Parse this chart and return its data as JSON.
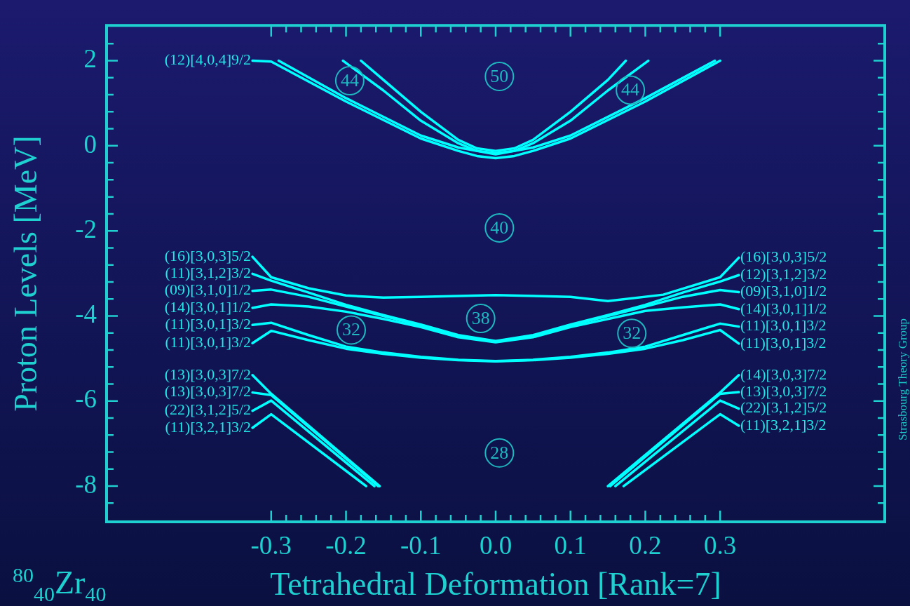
{
  "chart_data": {
    "type": "line",
    "xlabel": "Tetrahedral Deformation [Rank=7]",
    "ylabel": "Proton Levels [MeV]",
    "xlim": [
      -0.52,
      0.52
    ],
    "ylim": [
      -8.84,
      2.83
    ],
    "xticks": [
      -0.3,
      {
        "value": -0.28,
        "label": null
      },
      {
        "value": -0.26,
        "label": null
      },
      {
        "value": -0.24,
        "label": null
      },
      {
        "value": -0.22,
        "label": null
      },
      -0.2,
      {
        "value": -0.18,
        "label": null
      },
      {
        "value": -0.16,
        "label": null
      },
      {
        "value": -0.14,
        "label": null
      },
      {
        "value": -0.12,
        "label": null
      },
      -0.1,
      {
        "value": -0.08,
        "label": null
      },
      {
        "value": -0.06,
        "label": null
      },
      {
        "value": -0.04,
        "label": null
      },
      {
        "value": -0.02,
        "label": null
      },
      {
        "value": 0,
        "label": "0.0"
      },
      {
        "value": 0.02,
        "label": null
      },
      {
        "value": 0.04,
        "label": null
      },
      {
        "value": 0.06,
        "label": null
      },
      {
        "value": 0.08,
        "label": null
      },
      0.1,
      {
        "value": 0.12,
        "label": null
      },
      {
        "value": 0.14,
        "label": null
      },
      {
        "value": 0.16,
        "label": null
      },
      {
        "value": 0.18,
        "label": null
      },
      0.2,
      {
        "value": 0.22,
        "label": null
      },
      {
        "value": 0.24,
        "label": null
      },
      {
        "value": 0.26,
        "label": null
      },
      {
        "value": 0.28,
        "label": null
      },
      0.3
    ],
    "yticks": [
      {
        "value": -8.4,
        "label": null
      },
      -8,
      {
        "value": -7.6,
        "label": null
      },
      {
        "value": -7.2,
        "label": null
      },
      {
        "value": -6.8,
        "label": null
      },
      {
        "value": -6.4,
        "label": null
      },
      -6,
      {
        "value": -5.6,
        "label": null
      },
      {
        "value": -5.2,
        "label": null
      },
      {
        "value": -4.8,
        "label": null
      },
      {
        "value": -4.4,
        "label": null
      },
      -4,
      {
        "value": -3.6,
        "label": null
      },
      {
        "value": -3.2,
        "label": null
      },
      {
        "value": -2.8,
        "label": null
      },
      {
        "value": -2.4,
        "label": null
      },
      -2,
      {
        "value": -1.6,
        "label": null
      },
      {
        "value": -1.2,
        "label": null
      },
      {
        "value": -0.8,
        "label": null
      },
      {
        "value": -0.4,
        "label": null
      },
      0,
      {
        "value": 0.4,
        "label": null
      },
      {
        "value": 0.8,
        "label": null
      },
      {
        "value": 1.2,
        "label": null
      },
      {
        "value": 1.6,
        "label": null
      },
      2,
      {
        "value": 2.4,
        "label": null
      }
    ],
    "line_style": "solid",
    "marker": "none",
    "legend": false,
    "series": [
      {
        "color": "#00ffff",
        "x": [
          -0.325,
          -0.3,
          -0.2,
          -0.1,
          -0.05,
          -0.025,
          0,
          0.025,
          0.05,
          0.1,
          0.2,
          0.3
        ],
        "values": [
          2,
          1.98,
          1.04,
          0.17,
          -0.12,
          -0.24,
          -0.29,
          -0.24,
          -0.12,
          0.17,
          1.04,
          2.0
        ]
      },
      {
        "color": "#00ffff",
        "x": [
          -0.29,
          -0.2,
          -0.1,
          -0.05,
          0,
          0.05,
          0.1,
          0.2,
          0.293
        ],
        "values": [
          2.0,
          1.12,
          0.24,
          -0.04,
          -0.2,
          -0.04,
          0.24,
          1.12,
          2.0
        ]
      },
      {
        "color": "#00ffff",
        "x": [
          -0.204,
          -0.15,
          -0.1,
          -0.05,
          -0.025,
          0,
          0.025,
          0.05,
          0.1,
          0.15,
          0.204
        ],
        "values": [
          2.0,
          1.3,
          0.59,
          0.06,
          -0.12,
          -0.17,
          -0.12,
          0.06,
          0.59,
          1.3,
          2.0
        ]
      },
      {
        "color": "#00ffff",
        "x": [
          -0.18,
          -0.15,
          -0.1,
          -0.05,
          -0.025,
          0,
          0.025,
          0.05,
          0.1,
          0.15,
          0.174
        ],
        "values": [
          2.0,
          1.55,
          0.8,
          0.14,
          -0.06,
          -0.12,
          -0.06,
          0.14,
          0.8,
          1.55,
          2.0
        ]
      },
      {
        "color": "#00ffff",
        "x": [
          -0.325,
          -0.3,
          -0.25,
          -0.2,
          -0.15,
          -0.1,
          0,
          0.1,
          0.15,
          0.224,
          0.3,
          0.325
        ],
        "values": [
          -2.61,
          -3.09,
          -3.35,
          -3.52,
          -3.57,
          -3.55,
          -3.51,
          -3.55,
          -3.65,
          -3.5,
          -3.09,
          -2.63
        ]
      },
      {
        "color": "#00ffff",
        "x": [
          -0.325,
          -0.3,
          -0.25,
          -0.2,
          -0.15,
          -0.1,
          -0.05,
          0,
          0.05,
          0.1,
          0.15,
          0.2,
          0.25,
          0.3,
          0.325
        ],
        "values": [
          -3.01,
          -3.17,
          -3.45,
          -3.74,
          -3.98,
          -4.2,
          -4.45,
          -4.59,
          -4.45,
          -4.2,
          -3.98,
          -3.74,
          -3.45,
          -3.19,
          -3.04
        ]
      },
      {
        "color": "#00ffff",
        "x": [
          -0.325,
          -0.3,
          -0.25,
          -0.2,
          -0.15,
          -0.1,
          -0.05,
          0,
          0.05,
          0.1,
          0.15,
          0.2,
          0.25,
          0.3,
          0.325
        ],
        "values": [
          -3.41,
          -3.38,
          -3.55,
          -3.78,
          -4.0,
          -4.22,
          -4.47,
          -4.6,
          -4.47,
          -4.22,
          -4.0,
          -3.78,
          -3.55,
          -3.39,
          -3.44
        ]
      },
      {
        "color": "#00ffff",
        "x": [
          -0.325,
          -0.3,
          -0.25,
          -0.2,
          -0.15,
          -0.1,
          -0.05,
          0,
          0.05,
          0.1,
          0.15,
          0.2,
          0.25,
          0.3,
          0.325
        ],
        "values": [
          -3.81,
          -3.73,
          -3.78,
          -3.9,
          -4.07,
          -4.26,
          -4.5,
          -4.62,
          -4.5,
          -4.26,
          -4.07,
          -3.88,
          -3.8,
          -3.73,
          -3.84
        ]
      },
      {
        "color": "#00ffff",
        "x": [
          -0.325,
          -0.3,
          -0.25,
          -0.2,
          -0.15,
          -0.1,
          -0.05,
          0,
          0.05,
          0.1,
          0.15,
          0.2,
          0.25,
          0.3,
          0.325
        ],
        "values": [
          -4.21,
          -4.16,
          -4.45,
          -4.72,
          -4.86,
          -4.96,
          -5.03,
          -5.06,
          -5.03,
          -4.96,
          -4.86,
          -4.72,
          -4.45,
          -4.18,
          -4.25
        ]
      },
      {
        "color": "#00ffff",
        "x": [
          -0.325,
          -0.3,
          -0.25,
          -0.2,
          -0.15,
          -0.1,
          -0.05,
          0,
          0.05,
          0.1,
          0.15,
          0.2,
          0.25,
          0.3,
          0.325
        ],
        "values": [
          -4.64,
          -4.35,
          -4.57,
          -4.77,
          -4.89,
          -4.98,
          -5.04,
          -5.07,
          -5.04,
          -4.98,
          -4.89,
          -4.77,
          -4.57,
          -4.33,
          -4.65
        ]
      },
      {
        "color": "#00ffff",
        "x": [
          -0.325,
          -0.3,
          -0.155
        ],
        "values": [
          -5.39,
          -5.83,
          -8.0
        ]
      },
      {
        "color": "#00ffff",
        "x": [
          -0.325,
          -0.3,
          -0.157
        ],
        "values": [
          -5.8,
          -5.86,
          -8.0
        ]
      },
      {
        "color": "#00ffff",
        "x": [
          -0.325,
          -0.3,
          -0.162
        ],
        "values": [
          -6.23,
          -5.99,
          -8.0
        ]
      },
      {
        "color": "#00ffff",
        "x": [
          -0.325,
          -0.3,
          -0.173
        ],
        "values": [
          -6.63,
          -6.31,
          -8.0
        ]
      },
      {
        "color": "#00ffff",
        "x": [
          0.15,
          0.3,
          0.325
        ],
        "values": [
          -8.0,
          -5.8,
          -5.39
        ]
      },
      {
        "color": "#00ffff",
        "x": [
          0.153,
          0.3,
          0.325
        ],
        "values": [
          -8.0,
          -5.83,
          -5.79
        ]
      },
      {
        "color": "#00ffff",
        "x": [
          0.16,
          0.3,
          0.325
        ],
        "values": [
          -8.0,
          -5.99,
          -6.18
        ]
      },
      {
        "color": "#00ffff",
        "x": [
          0.171,
          0.3,
          0.325
        ],
        "values": [
          -8.0,
          -6.31,
          -6.58
        ]
      }
    ],
    "annotations": [
      {
        "text": "(12)[4,0,4]9/2",
        "x": -0.325,
        "y": 2
      },
      {
        "text": "(16)[3,0,3]5/2",
        "x": -0.325,
        "y": -2.61
      },
      {
        "text": "(11)[3,1,2]3/2",
        "x": -0.325,
        "y": -3.01
      },
      {
        "text": "(09)[3,1,0]1/2",
        "x": -0.325,
        "y": -3.41
      },
      {
        "text": "(14)[3,0,1]1/2",
        "x": -0.325,
        "y": -3.81
      },
      {
        "text": "(11)[3,0,1]3/2",
        "x": -0.325,
        "y": -4.21
      },
      {
        "text": "(11)[3,0,1]3/2",
        "x": -0.325,
        "y": -4.64
      },
      {
        "text": "(13)[3,0,3]7/2",
        "x": -0.325,
        "y": -5.39
      },
      {
        "text": "(13)[3,0,3]7/2",
        "x": -0.325,
        "y": -5.8
      },
      {
        "text": "(22)[3,1,2]5/2",
        "x": -0.325,
        "y": -6.23
      },
      {
        "text": "(11)[3,2,1]3/2",
        "x": -0.325,
        "y": -6.63
      },
      {
        "text": "(16)[3,0,3]5/2",
        "x": 0.325,
        "y": -2.63
      },
      {
        "text": "(12)[3,1,2]3/2",
        "x": 0.325,
        "y": -3.04
      },
      {
        "text": "(09)[3,1,0]1/2",
        "x": 0.325,
        "y": -3.44
      },
      {
        "text": "(14)[3,0,1]1/2",
        "x": 0.325,
        "y": -3.84
      },
      {
        "text": "(11)[3,0,1]3/2",
        "x": 0.325,
        "y": -4.25
      },
      {
        "text": "(11)[3,0,1]3/2",
        "x": 0.325,
        "y": -4.65
      },
      {
        "text": "(14)[3,0,3]7/2",
        "x": 0.325,
        "y": -5.39
      },
      {
        "text": "(13)[3,0,3]7/2",
        "x": 0.325,
        "y": -5.79
      },
      {
        "text": "(22)[3,1,2]5/2",
        "x": 0.325,
        "y": -6.18
      },
      {
        "text": "(11)[3,2,1]3/2",
        "x": 0.325,
        "y": -6.58
      },
      {
        "text": "50",
        "x": 0.005,
        "y": 1.63
      },
      {
        "text": "44",
        "x": -0.195,
        "y": 1.53
      },
      {
        "text": "44",
        "x": 0.18,
        "y": 1.31
      },
      {
        "text": "40",
        "x": 0.005,
        "y": -1.93
      },
      {
        "text": "38",
        "x": -0.02,
        "y": -4.06
      },
      {
        "text": "32",
        "x": -0.193,
        "y": -4.33
      },
      {
        "text": "32",
        "x": 0.182,
        "y": -4.41
      },
      {
        "text": "28",
        "x": 0.005,
        "y": -7.22
      },
      "$^{80}$$_{40}$Zr$_{40}$",
      "Strasbourg Theory Group"
    ]
  }
}
